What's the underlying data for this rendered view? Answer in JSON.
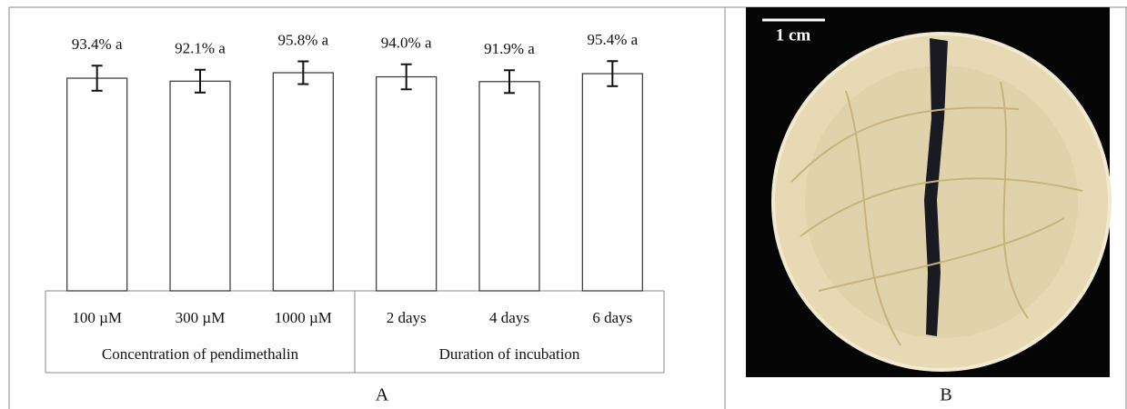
{
  "chart_data": {
    "type": "bar",
    "categories": [
      "100 µM",
      "300 µM",
      "1000 µM",
      "2 days",
      "4 days",
      "6 days"
    ],
    "values": [
      93.4,
      92.1,
      95.8,
      94.0,
      91.9,
      95.4
    ],
    "value_labels": [
      "93.4% a",
      "92.1% a",
      "95.8% a",
      "94.0% a",
      "91.9% a",
      "95.4% a"
    ],
    "errors": [
      5.5,
      5.0,
      5.0,
      5.5,
      5.0,
      5.5
    ],
    "groups": [
      "Concentration of pendimethalin",
      "Duration of incubation"
    ],
    "color": "#ffffff"
  },
  "panels": {
    "a": "A",
    "b": "B"
  },
  "image": {
    "scale_label": "1 cm"
  }
}
